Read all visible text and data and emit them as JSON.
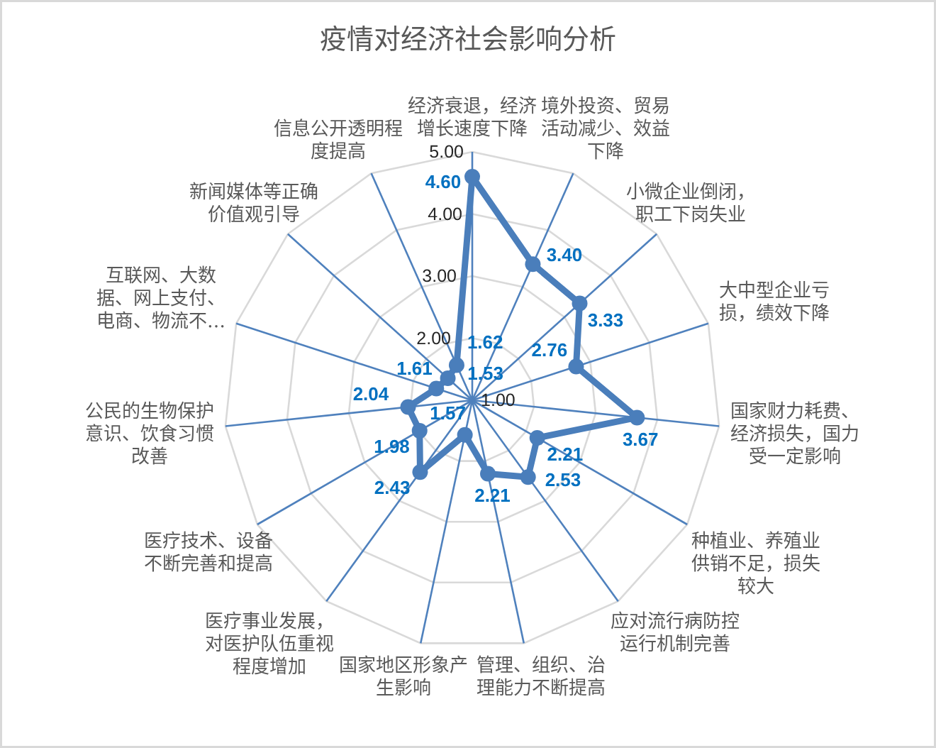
{
  "chart_data": {
    "type": "radar",
    "title": "疫情对经济社会影响分析",
    "categories": [
      "经济衰退，经济增长速度下降",
      "境外投资、贸易活动减少、效益下降",
      "小微企业倒闭，职工下岗失业",
      "大中型企业亏损，绩效下降",
      "国家财力耗费、经济损失，国力受一定影响",
      "种植业、养殖业供销不足，损失较大",
      "应对流行病防控运行机制完善",
      "管理、组织、治理能力不断提高",
      "国家地区形象产生影响",
      "医疗事业发展，对医护队伍重视程度增加",
      "医疗技术、设备不断完善和提高",
      "公民的生物保护意识、饮食习惯改善",
      "互联网、大数据、网上支付、电商、物流不…",
      "新闻媒体等正确价值观引导",
      "信息公开透明程度提高"
    ],
    "series": [
      {
        "color": "#4a7ebb",
        "values": [
          4.6,
          3.4,
          3.33,
          2.76,
          3.67,
          2.21,
          2.53,
          2.21,
          1.57,
          2.43,
          1.98,
          2.04,
          1.61,
          1.53,
          1.62
        ],
        "value_labels": [
          "4.60",
          "3.40",
          "3.33",
          "2.76",
          "3.67",
          "2.21",
          "2.53",
          "2.21",
          "1.57",
          "2.43",
          "1.98",
          "2.04",
          "1.61",
          "1.53",
          "1.62"
        ]
      }
    ],
    "ylim": [
      1,
      5
    ],
    "yticks": [
      {
        "value": 1,
        "label": "1.00"
      },
      {
        "value": 2,
        "label": "2.00"
      },
      {
        "value": 3,
        "label": "3.00"
      },
      {
        "value": 4,
        "label": "4.00"
      },
      {
        "value": 5,
        "label": "5.00"
      }
    ],
    "grid": true,
    "marker": "circle",
    "line_style": "solid"
  }
}
